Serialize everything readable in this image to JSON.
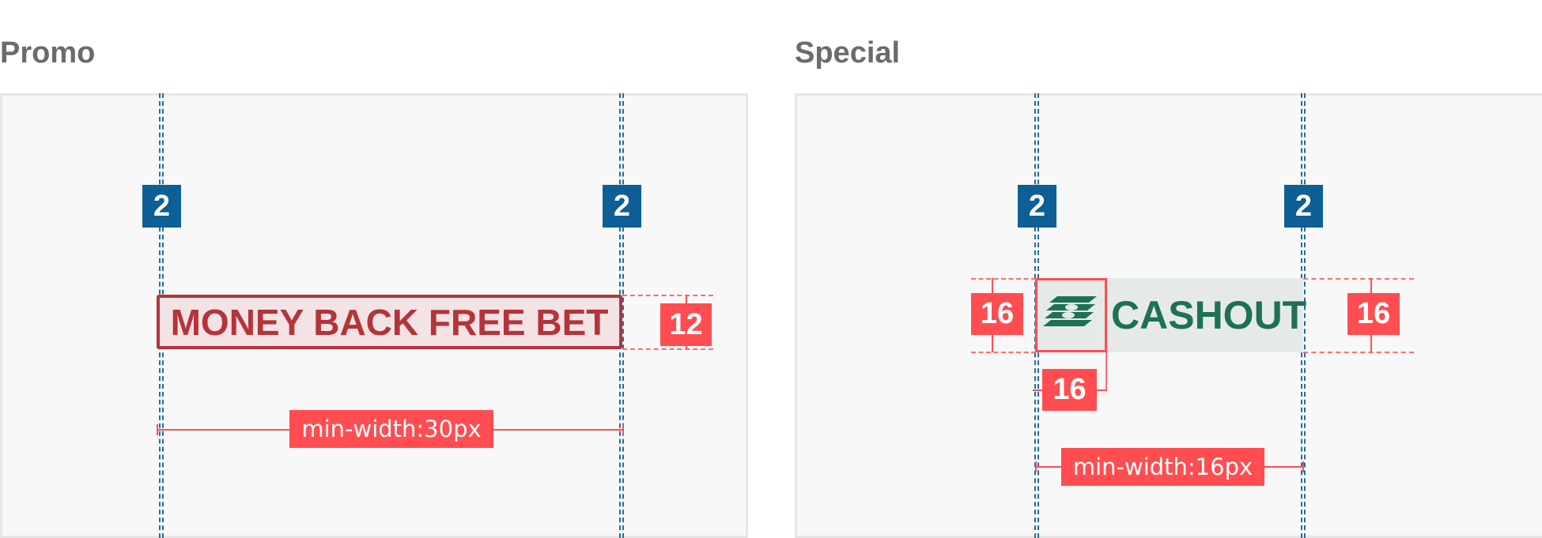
{
  "sections": {
    "promo": {
      "title": "Promo",
      "tag_text": "MONEY BACK FREE BET",
      "left_spacing": "2",
      "right_spacing": "2",
      "height_badge": "12",
      "min_width_label": "min-width:30px"
    },
    "special": {
      "title": "Special",
      "tag_text": "CASHOUT",
      "icon": "cash-stack-icon",
      "left_spacing": "2",
      "right_spacing": "2",
      "left_height_badge": "16",
      "right_height_badge": "16",
      "icon_size_badge": "16",
      "min_width_label": "min-width:16px"
    }
  },
  "colors": {
    "spacing_badge": "#0d5f95",
    "measure": "#ff4d52",
    "promo_tag_text": "#b3343a",
    "promo_tag_bg": "#f3e3e4",
    "special_tag_text": "#1e7056",
    "special_tag_bg": "#e5eae8"
  }
}
